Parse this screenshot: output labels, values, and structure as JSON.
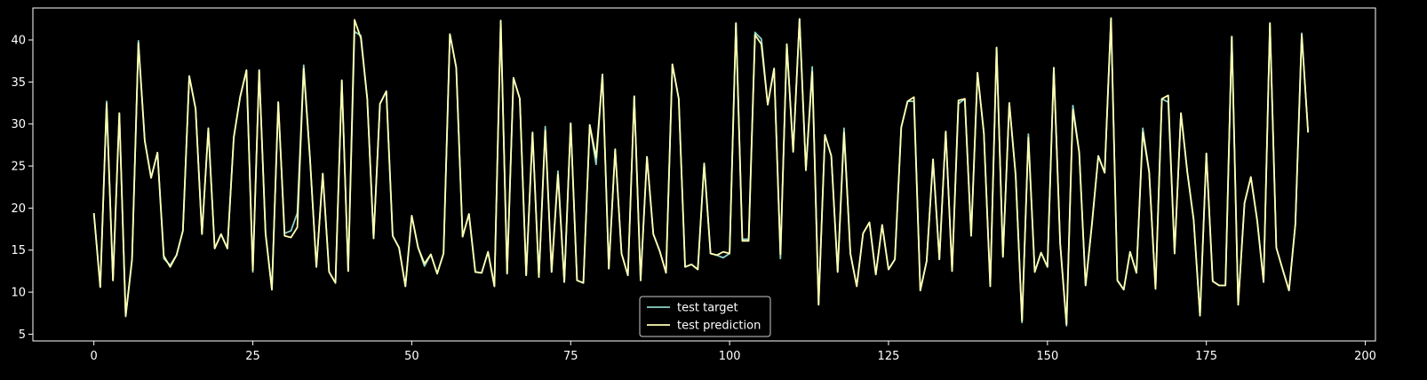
{
  "chart_data": {
    "type": "line",
    "title": "",
    "xlabel": "",
    "ylabel": "",
    "xlim": [
      -9.6,
      201.6
    ],
    "ylim": [
      4.2,
      43.8
    ],
    "xticks": [
      0,
      25,
      50,
      75,
      100,
      125,
      150,
      175,
      200
    ],
    "yticks": [
      5,
      10,
      15,
      20,
      25,
      30,
      35,
      40
    ],
    "grid": false,
    "legend_position": "bottom-center",
    "background": "#000000",
    "axis_color": "#ffffff",
    "series": [
      {
        "name": "test target",
        "color": "#8dd3c7",
        "values": [
          19.4,
          10.6,
          32.7,
          11.4,
          31.3,
          7.1,
          13.9,
          39.9,
          28.0,
          23.6,
          26.6,
          14.0,
          13.2,
          14.4,
          17.3,
          35.7,
          31.8,
          16.9,
          29.5,
          15.2,
          16.9,
          15.2,
          28.4,
          33.2,
          36.4,
          12.4,
          36.4,
          17.0,
          10.3,
          32.6,
          17.0,
          17.3,
          19.4,
          37.0,
          25.8,
          13.0,
          24.1,
          12.4,
          11.1,
          35.2,
          12.5,
          41.0,
          40.5,
          33.0,
          16.4,
          32.4,
          33.9,
          16.7,
          15.3,
          10.7,
          19.1,
          15.3,
          13.1,
          14.5,
          12.2,
          14.6,
          40.7,
          36.7,
          16.6,
          19.3,
          12.4,
          12.3,
          14.8,
          10.7,
          42.3,
          12.2,
          35.5,
          33.0,
          12.0,
          29.0,
          11.8,
          29.7,
          12.4,
          24.4,
          11.2,
          30.1,
          11.4,
          11.1,
          29.9,
          25.2,
          35.9,
          12.8,
          27.0,
          14.6,
          12.0,
          33.3,
          11.4,
          26.1,
          16.9,
          14.9,
          12.3,
          37.1,
          33.0,
          13.0,
          13.3,
          12.7,
          25.3,
          14.6,
          14.4,
          14.1,
          14.6,
          42.0,
          16.3,
          16.3,
          40.9,
          40.1,
          32.3,
          36.6,
          14.0,
          39.5,
          26.7,
          42.5,
          24.5,
          36.8,
          8.5,
          28.7,
          26.2,
          12.4,
          29.5,
          14.6,
          10.7,
          17.0,
          18.3,
          12.1,
          18.0,
          12.7,
          13.9,
          29.6,
          32.7,
          32.7,
          10.2,
          13.7,
          25.8,
          13.9,
          29.1,
          12.5,
          32.4,
          33.0,
          16.7,
          36.1,
          28.9,
          10.7,
          39.1,
          14.2,
          32.5,
          23.9,
          6.4,
          28.8,
          12.4,
          14.7,
          13.0,
          36.7,
          15.8,
          6.0,
          32.2,
          26.6,
          10.8,
          18.1,
          26.2,
          24.2,
          42.6,
          11.4,
          10.3,
          14.8,
          12.3,
          29.5,
          24.3,
          10.4,
          33.0,
          32.6,
          14.6,
          31.3,
          24.3,
          18.6,
          7.2,
          26.5,
          11.3,
          10.8,
          10.8,
          40.4,
          8.5,
          20.6,
          23.7,
          18.5,
          11.2,
          42.0,
          15.3,
          12.7,
          10.2,
          18.1,
          40.8,
          29.0
        ]
      },
      {
        "name": "test prediction",
        "color": "#ffffb3",
        "values": [
          19.4,
          10.6,
          32.4,
          11.4,
          31.3,
          7.2,
          13.9,
          39.6,
          28.0,
          23.6,
          26.6,
          14.3,
          13.0,
          14.4,
          17.3,
          35.7,
          31.8,
          16.9,
          29.5,
          15.2,
          16.9,
          15.2,
          28.4,
          33.2,
          36.4,
          12.6,
          36.4,
          17.0,
          10.3,
          32.6,
          16.7,
          16.5,
          17.7,
          36.6,
          25.8,
          13.0,
          24.1,
          12.4,
          11.1,
          35.2,
          12.5,
          42.4,
          40.2,
          33.0,
          16.4,
          32.4,
          33.9,
          16.7,
          15.3,
          10.7,
          19.1,
          15.3,
          13.4,
          14.5,
          12.2,
          14.6,
          40.7,
          36.7,
          16.6,
          19.3,
          12.4,
          12.3,
          14.8,
          10.7,
          42.3,
          12.2,
          35.5,
          33.0,
          12.0,
          29.0,
          11.8,
          29.2,
          12.4,
          24.0,
          11.2,
          30.1,
          11.4,
          11.1,
          29.9,
          26.0,
          35.9,
          12.8,
          27.0,
          14.6,
          12.0,
          33.3,
          11.4,
          26.1,
          16.9,
          14.9,
          12.3,
          37.1,
          33.0,
          13.0,
          13.3,
          12.7,
          25.3,
          14.6,
          14.4,
          14.8,
          14.6,
          42.0,
          16.1,
          16.1,
          40.6,
          39.5,
          32.3,
          36.6,
          14.5,
          39.5,
          26.7,
          42.5,
          24.5,
          36.2,
          8.5,
          28.7,
          26.2,
          12.4,
          29.0,
          14.6,
          10.7,
          17.0,
          18.3,
          12.1,
          18.0,
          12.7,
          13.9,
          29.6,
          32.7,
          33.2,
          10.2,
          13.7,
          25.8,
          13.9,
          29.1,
          12.5,
          32.8,
          33.0,
          16.7,
          36.1,
          28.9,
          10.7,
          39.1,
          14.2,
          32.5,
          23.9,
          6.6,
          28.4,
          12.4,
          14.7,
          13.0,
          36.7,
          15.8,
          6.2,
          31.7,
          26.6,
          10.8,
          18.1,
          26.2,
          24.2,
          42.6,
          11.4,
          10.3,
          14.8,
          12.3,
          29.0,
          24.3,
          10.4,
          33.0,
          33.4,
          14.6,
          31.3,
          24.3,
          18.6,
          7.2,
          26.5,
          11.3,
          10.8,
          10.8,
          40.4,
          8.5,
          20.6,
          23.7,
          18.5,
          11.2,
          42.0,
          15.3,
          12.7,
          10.2,
          18.1,
          40.6,
          29.0
        ]
      }
    ]
  }
}
